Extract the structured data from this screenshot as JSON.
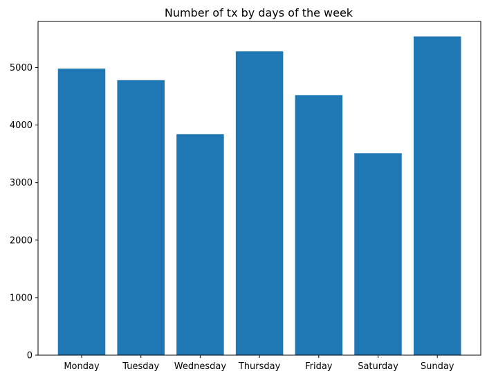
{
  "chart_data": {
    "type": "bar",
    "title": "Number of tx by days of the week",
    "xlabel": "",
    "ylabel": "",
    "categories": [
      "Monday",
      "Tuesday",
      "Wednesday",
      "Thursday",
      "Friday",
      "Saturday",
      "Sunday"
    ],
    "values": [
      4980,
      4780,
      3840,
      5280,
      4520,
      3510,
      5540
    ],
    "ylim": [
      0,
      5800
    ],
    "yticks": [
      0,
      1000,
      2000,
      3000,
      4000,
      5000
    ],
    "ytick_labels": [
      "0",
      "1000",
      "2000",
      "3000",
      "4000",
      "5000"
    ],
    "bar_color": "#1f77b4",
    "grid": false,
    "legend": "none"
  }
}
